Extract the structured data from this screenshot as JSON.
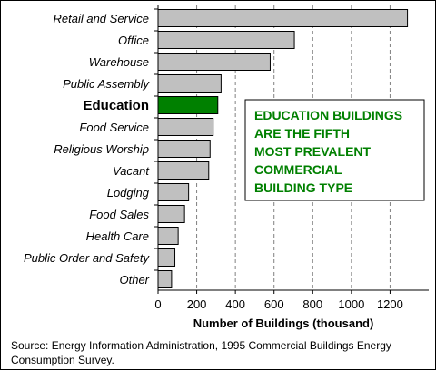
{
  "chart_data": {
    "type": "bar",
    "orientation": "horizontal",
    "categories": [
      "Retail and Service",
      "Office",
      "Warehouse",
      "Public Assembly",
      "Education",
      "Food Service",
      "Religious Worship",
      "Vacant",
      "Lodging",
      "Food Sales",
      "Health Care",
      "Public Order and Safety",
      "Other"
    ],
    "values": [
      1290,
      705,
      580,
      326,
      309,
      285,
      269,
      262,
      158,
      137,
      104,
      87,
      70
    ],
    "highlight_category": "Education",
    "xlabel": "Number of Buildings (thousand)",
    "xlim": [
      0,
      1400
    ],
    "xticks": [
      0,
      200,
      400,
      600,
      800,
      1000,
      1200
    ],
    "gridlines": "vertical dashed",
    "bar_color": "#c0c0c0",
    "highlight_color": "#008000"
  },
  "callout": {
    "lines": [
      "EDUCATION BUILDINGS",
      "ARE THE FIFTH",
      "MOST PREVALENT",
      "COMMERCIAL",
      "BUILDING TYPE"
    ],
    "color": "#008000"
  },
  "source_text": "Source:  Energy Information Administration, 1995 Commercial Buildings Energy Consumption Survey."
}
